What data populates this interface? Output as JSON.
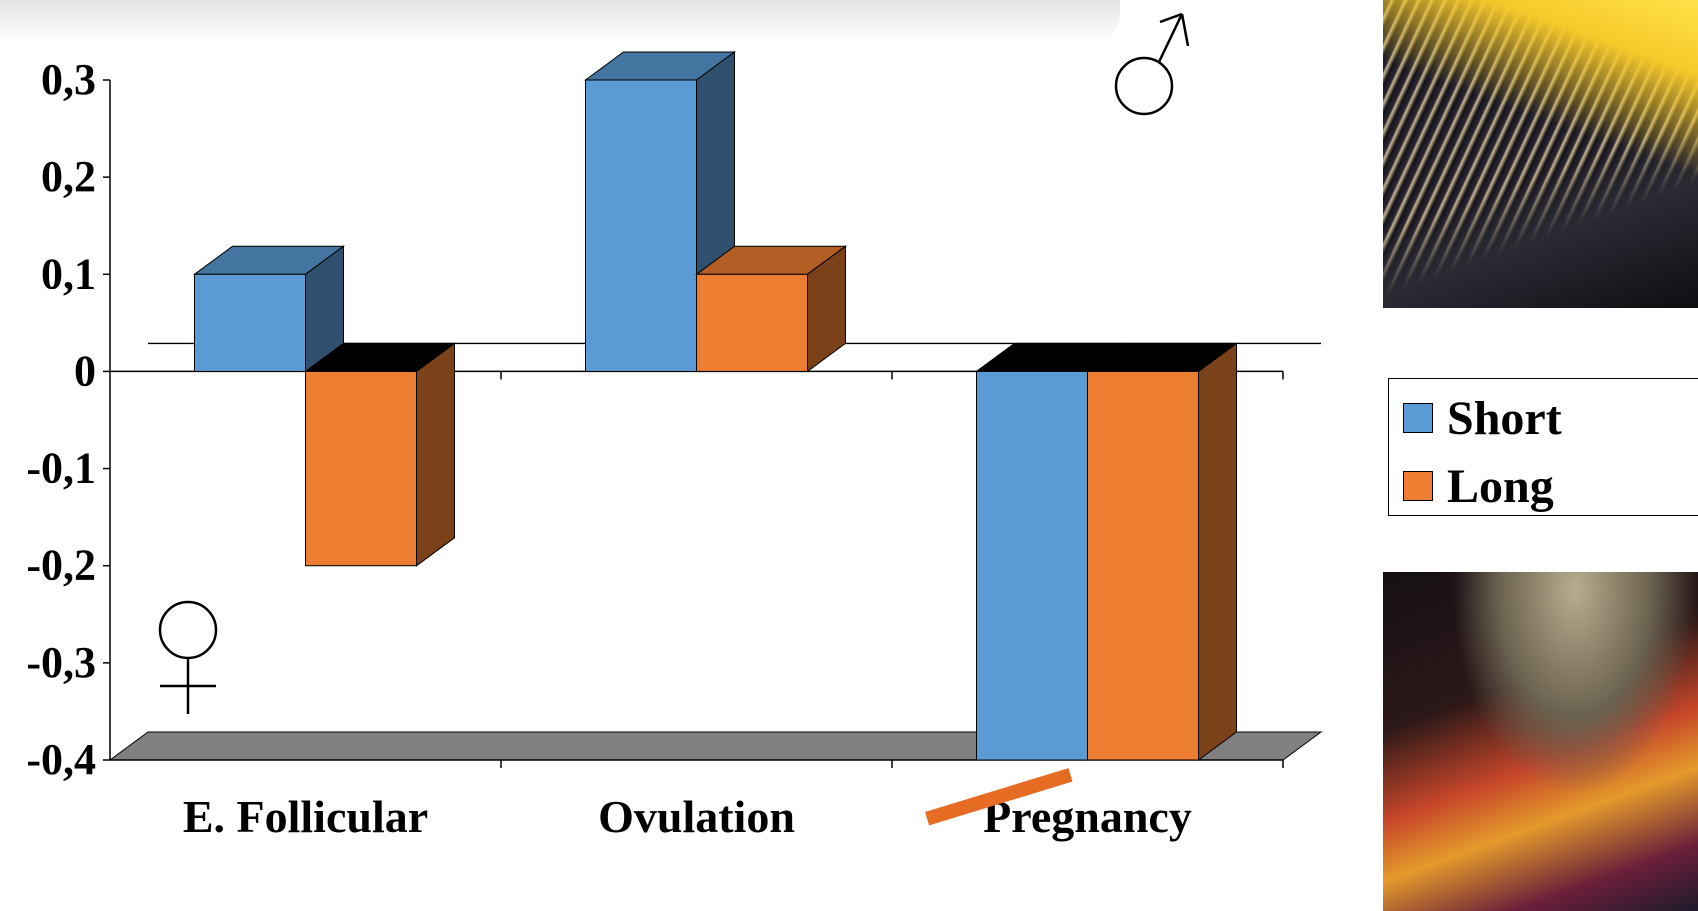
{
  "chart_data": {
    "type": "bar",
    "style": "3d",
    "categories": [
      "E. Follicular",
      "Ovulation",
      "Pregnancy"
    ],
    "series": [
      {
        "name": "Short",
        "values": [
          0.1,
          0.3,
          -0.4
        ],
        "color": "#5b9bd5"
      },
      {
        "name": "Long",
        "values": [
          -0.2,
          0.1,
          -0.4
        ],
        "color": "#ed7d31"
      }
    ],
    "ylim": [
      -0.4,
      0.3
    ],
    "yticks": [
      {
        "value": 0.3,
        "label": "0,3"
      },
      {
        "value": 0.2,
        "label": "0,2"
      },
      {
        "value": 0.1,
        "label": "0,1"
      },
      {
        "value": 0,
        "label": "0"
      },
      {
        "value": -0.1,
        "label": "-0,1"
      },
      {
        "value": -0.2,
        "label": "-0,2"
      },
      {
        "value": -0.3,
        "label": "-0,3"
      },
      {
        "value": -0.4,
        "label": "-0,4"
      }
    ],
    "legend_position": "right",
    "floor_color": "#808080",
    "grid": false
  },
  "symbols": {
    "male": "♂",
    "female": "♀"
  },
  "legend": [
    {
      "label": "Short",
      "color": "#5b9bd5"
    },
    {
      "label": "Long",
      "color": "#ed7d31"
    }
  ],
  "photos": {
    "top": "crystal-micrograph-icon",
    "bottom": "crystal-micrograph-icon"
  }
}
